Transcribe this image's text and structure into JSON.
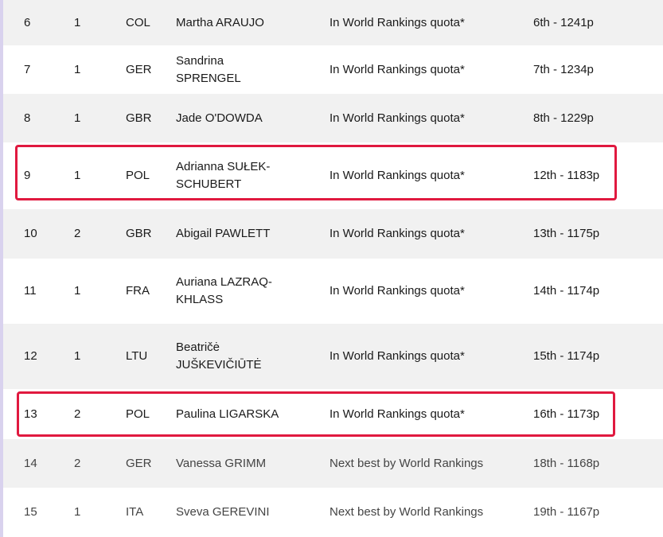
{
  "rows": [
    {
      "rank": "6",
      "num": "1",
      "noc": "COL",
      "name": "Martha ARAUJO",
      "method": "In World Rankings quota*",
      "score": "6th - 1241p"
    },
    {
      "rank": "7",
      "num": "1",
      "noc": "GER",
      "name": "Sandrina SPRENGEL",
      "method": "In World Rankings quota*",
      "score": "7th - 1234p"
    },
    {
      "rank": "8",
      "num": "1",
      "noc": "GBR",
      "name": "Jade O'DOWDA",
      "method": "In World Rankings quota*",
      "score": "8th - 1229p"
    },
    {
      "rank": "9",
      "num": "1",
      "noc": "POL",
      "name": "Adrianna SUŁEK-SCHUBERT",
      "method": "In World Rankings quota*",
      "score": "12th - 1183p"
    },
    {
      "rank": "10",
      "num": "2",
      "noc": "GBR",
      "name": "Abigail PAWLETT",
      "method": "In World Rankings quota*",
      "score": "13th - 1175p"
    },
    {
      "rank": "11",
      "num": "1",
      "noc": "FRA",
      "name": "Auriana LAZRAQ-KHLASS",
      "method": "In World Rankings quota*",
      "score": "14th - 1174p"
    },
    {
      "rank": "12",
      "num": "1",
      "noc": "LTU",
      "name": "Beatričė JUŠKEVIČIŪTĖ",
      "method": "In World Rankings quota*",
      "score": "15th - 1174p"
    },
    {
      "rank": "13",
      "num": "2",
      "noc": "POL",
      "name": "Paulina LIGARSKA",
      "method": "In World Rankings quota*",
      "score": "16th - 1173p"
    },
    {
      "rank": "14",
      "num": "2",
      "noc": "GER",
      "name": "Vanessa GRIMM",
      "method": "Next best by World Rankings",
      "score": "18th - 1168p"
    },
    {
      "rank": "15",
      "num": "1",
      "noc": "ITA",
      "name": "Sveva GEREVINI",
      "method": "Next best by World Rankings",
      "score": "19th - 1167p"
    }
  ],
  "highlighted_ranks": [
    "9",
    "13"
  ],
  "colors": {
    "highlight": "#e0193f",
    "row_alt": "#f1f1f1",
    "accent_bar": "#d9d2ee"
  }
}
